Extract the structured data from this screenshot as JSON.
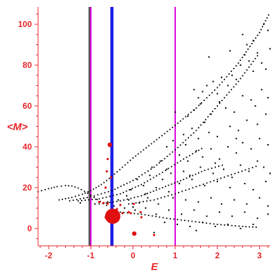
{
  "chart_data": {
    "type": "scatter",
    "title": "",
    "xlabel": "E",
    "ylabel": "<M>",
    "xlim": [
      -2.25,
      3.25
    ],
    "ylim": [
      -8.5,
      108.5
    ],
    "grid": false,
    "legend": "none",
    "x_ticks": [
      -2,
      -1,
      0,
      1,
      2,
      3
    ],
    "x_tick_labels": [
      "-2",
      "-1",
      "0",
      "1",
      "2",
      "3"
    ],
    "y_ticks": [
      0,
      20,
      40,
      60,
      80,
      100
    ],
    "y_tick_labels": [
      "0",
      "20",
      "40",
      "60",
      "80",
      "100"
    ],
    "colors": {
      "axis": "#e8262a",
      "points": "#000000",
      "highlight": "#e01010",
      "dark_line": "#555555",
      "magenta_line": "#dd00dd",
      "blue_line": "#1a1ae6"
    },
    "vertical_lines": [
      {
        "x": -1.03,
        "color": "#555555",
        "role": "dark"
      },
      {
        "x": -1.0,
        "color": "#dd00dd",
        "role": "magenta"
      },
      {
        "x": -0.5,
        "color": "#1a1ae6",
        "role": "blue-thick"
      },
      {
        "x": 1.0,
        "color": "#dd00dd",
        "role": "magenta"
      }
    ],
    "curves": [
      {
        "name": "",
        "points": [
          [
            -2.25,
            18
          ],
          [
            -2.0,
            19.5
          ],
          [
            -1.8,
            20.5
          ],
          [
            -1.6,
            21
          ],
          [
            -1.45,
            20.8
          ],
          [
            -1.3,
            19.8
          ],
          [
            -1.15,
            18.2
          ],
          [
            -1.0,
            16.2
          ],
          [
            -0.85,
            14.2
          ],
          [
            -0.7,
            12.2
          ],
          [
            -0.55,
            10.4
          ]
        ]
      },
      {
        "name": "",
        "points": [
          [
            -1.75,
            14
          ],
          [
            -1.45,
            15.2
          ],
          [
            -1.2,
            16.8
          ],
          [
            -1.0,
            18.5
          ],
          [
            -0.75,
            21.5
          ],
          [
            -0.5,
            25.5
          ],
          [
            -0.25,
            30
          ],
          [
            0.0,
            34.5
          ],
          [
            0.5,
            42.5
          ],
          [
            1.0,
            50.5
          ],
          [
            1.5,
            59
          ],
          [
            2.0,
            69
          ],
          [
            2.5,
            81
          ],
          [
            3.0,
            96
          ],
          [
            3.25,
            106
          ]
        ]
      },
      {
        "name": "",
        "points": [
          [
            -1.5,
            13.5
          ],
          [
            -1.0,
            15.5
          ],
          [
            -0.5,
            18.5
          ],
          [
            0.0,
            23.5
          ],
          [
            0.5,
            30
          ],
          [
            1.0,
            38.5
          ],
          [
            1.5,
            48
          ],
          [
            2.0,
            60
          ],
          [
            2.5,
            72
          ],
          [
            3.0,
            86
          ]
        ]
      },
      {
        "name": "",
        "points": [
          [
            -1.3,
            13.5
          ],
          [
            -0.8,
            14.5
          ],
          [
            -0.3,
            17
          ],
          [
            0.2,
            21.5
          ],
          [
            0.7,
            27.5
          ],
          [
            1.2,
            34
          ],
          [
            1.7,
            40
          ]
        ]
      },
      {
        "name": "",
        "points": [
          [
            -0.8,
            12
          ],
          [
            -0.3,
            13.5
          ],
          [
            0.2,
            16
          ],
          [
            0.7,
            20
          ],
          [
            1.2,
            24
          ],
          [
            1.7,
            28.5
          ],
          [
            2.2,
            31.5
          ]
        ]
      },
      {
        "name": "",
        "points": [
          [
            -0.1,
            12
          ],
          [
            0.5,
            14
          ],
          [
            1.0,
            17
          ],
          [
            1.5,
            20.5
          ],
          [
            2.0,
            24
          ],
          [
            2.5,
            27.5
          ],
          [
            3.0,
            31
          ]
        ]
      },
      {
        "name": "",
        "points": [
          [
            -0.3,
            8
          ],
          [
            0.2,
            7
          ],
          [
            0.8,
            5
          ],
          [
            1.4,
            3.5
          ],
          [
            2.0,
            2
          ],
          [
            2.6,
            1
          ],
          [
            3.0,
            0.5
          ]
        ]
      }
    ],
    "scattered_points": [
      [
        1.45,
        68
      ],
      [
        1.55,
        64
      ],
      [
        1.65,
        67
      ],
      [
        1.75,
        70
      ],
      [
        1.9,
        72
      ],
      [
        2.0,
        66
      ],
      [
        2.1,
        74
      ],
      [
        2.25,
        70
      ],
      [
        2.35,
        75
      ],
      [
        2.45,
        73
      ],
      [
        2.55,
        80
      ],
      [
        2.65,
        85
      ],
      [
        2.75,
        82
      ],
      [
        2.85,
        77
      ],
      [
        2.95,
        86
      ],
      [
        3.05,
        81
      ],
      [
        3.15,
        78
      ],
      [
        3.25,
        88
      ],
      [
        2.7,
        90
      ],
      [
        3.1,
        100
      ],
      [
        1.3,
        55
      ],
      [
        1.45,
        58
      ],
      [
        1.6,
        61
      ],
      [
        1.7,
        52
      ],
      [
        1.85,
        56
      ],
      [
        2.05,
        62
      ],
      [
        2.2,
        59
      ],
      [
        2.4,
        57
      ],
      [
        2.6,
        65
      ],
      [
        2.8,
        63
      ],
      [
        2.9,
        60
      ],
      [
        3.05,
        68
      ],
      [
        3.2,
        64
      ],
      [
        1.2,
        46
      ],
      [
        1.4,
        49
      ],
      [
        1.55,
        44
      ],
      [
        1.8,
        47
      ],
      [
        2.0,
        45
      ],
      [
        2.3,
        50
      ],
      [
        2.5,
        48
      ],
      [
        2.7,
        53
      ],
      [
        2.95,
        51
      ],
      [
        3.15,
        56
      ],
      [
        1.1,
        36
      ],
      [
        1.3,
        33
      ],
      [
        1.5,
        38
      ],
      [
        1.65,
        35
      ],
      [
        1.85,
        39
      ],
      [
        2.05,
        34
      ],
      [
        2.25,
        40
      ],
      [
        2.45,
        37
      ],
      [
        2.6,
        42
      ],
      [
        2.8,
        39
      ],
      [
        3.0,
        44
      ],
      [
        3.2,
        41
      ],
      [
        1.2,
        28
      ],
      [
        1.35,
        26
      ],
      [
        1.6,
        30
      ],
      [
        1.9,
        27
      ],
      [
        2.15,
        29
      ],
      [
        2.35,
        25
      ],
      [
        2.55,
        31
      ],
      [
        2.75,
        28
      ],
      [
        2.95,
        33
      ],
      [
        3.1,
        30
      ],
      [
        3.25,
        27
      ],
      [
        1.1,
        22
      ],
      [
        1.4,
        24
      ],
      [
        1.7,
        21
      ],
      [
        2.0,
        23
      ],
      [
        2.3,
        20
      ],
      [
        2.65,
        22
      ],
      [
        2.85,
        19
      ],
      [
        3.15,
        23
      ],
      [
        0.55,
        20
      ],
      [
        0.7,
        24
      ],
      [
        0.85,
        18
      ],
      [
        0.9,
        27
      ],
      [
        0.35,
        15
      ],
      [
        0.6,
        12
      ],
      [
        0.95,
        15
      ],
      [
        1.25,
        14
      ],
      [
        1.55,
        13
      ],
      [
        1.85,
        15
      ],
      [
        2.1,
        12
      ],
      [
        2.4,
        14
      ],
      [
        2.7,
        12
      ],
      [
        3.0,
        15
      ],
      [
        3.2,
        11
      ],
      [
        0.45,
        30
      ],
      [
        0.65,
        33
      ],
      [
        0.8,
        29
      ],
      [
        0.1,
        24
      ],
      [
        0.25,
        21
      ],
      [
        0.4,
        26
      ],
      [
        -0.05,
        19
      ],
      [
        -0.15,
        16
      ],
      [
        0.05,
        9
      ],
      [
        0.3,
        10
      ],
      [
        0.55,
        7
      ],
      [
        0.85,
        9
      ],
      [
        1.15,
        7
      ],
      [
        1.45,
        9
      ],
      [
        1.75,
        6
      ],
      [
        2.05,
        8
      ],
      [
        2.35,
        6
      ],
      [
        2.65,
        8
      ],
      [
        2.95,
        5
      ],
      [
        3.2,
        7
      ],
      [
        0.75,
        3
      ],
      [
        1.05,
        2
      ],
      [
        1.35,
        1
      ],
      [
        1.65,
        3
      ],
      [
        1.95,
        1
      ],
      [
        2.25,
        2
      ],
      [
        2.55,
        0
      ],
      [
        2.85,
        2
      ],
      [
        1.5,
        -1
      ],
      [
        0.5,
        -2
      ],
      [
        1.8,
        84
      ],
      [
        2.3,
        87
      ],
      [
        2.6,
        95
      ],
      [
        2.85,
        92
      ],
      [
        3.2,
        97
      ],
      [
        2.45,
        44
      ],
      [
        1.95,
        32
      ],
      [
        1.25,
        41
      ],
      [
        0.95,
        43
      ],
      [
        1.0,
        57
      ],
      [
        0.8,
        40
      ],
      [
        -0.35,
        14
      ],
      [
        -0.6,
        13
      ],
      [
        -0.9,
        12
      ],
      [
        -1.25,
        12.5
      ],
      [
        -0.2,
        10
      ],
      [
        -0.45,
        11
      ],
      [
        0.0,
        10.5
      ],
      [
        0.15,
        12.5
      ],
      [
        -0.1,
        14
      ],
      [
        0.3,
        17
      ]
    ],
    "highlight_points": [
      {
        "x": -0.48,
        "y": 6.0,
        "size": "large"
      },
      {
        "x": -0.62,
        "y": 5.5,
        "size": "medium"
      },
      {
        "x": -0.7,
        "y": 12.5,
        "size": "small"
      },
      {
        "x": -0.6,
        "y": 12.2,
        "size": "small"
      },
      {
        "x": -0.55,
        "y": 41,
        "size": "medium"
      },
      {
        "x": -0.6,
        "y": 34,
        "size": "small"
      },
      {
        "x": -0.62,
        "y": 28,
        "size": "small"
      },
      {
        "x": -0.65,
        "y": 20,
        "size": "small"
      },
      {
        "x": -0.52,
        "y": 25,
        "size": "small"
      },
      {
        "x": -0.3,
        "y": 11.5,
        "size": "small"
      },
      {
        "x": -0.25,
        "y": 7.5,
        "size": "small"
      },
      {
        "x": 0.02,
        "y": 12,
        "size": "small"
      },
      {
        "x": -0.1,
        "y": 8,
        "size": "small"
      },
      {
        "x": -0.05,
        "y": 7.5,
        "size": "small"
      },
      {
        "x": 0.18,
        "y": 8,
        "size": "small"
      },
      {
        "x": 0.2,
        "y": 5.5,
        "size": "small"
      },
      {
        "x": 0.03,
        "y": -2.5,
        "size": "medium"
      },
      {
        "x": 0.5,
        "y": -3.2,
        "size": "small"
      },
      {
        "x": -0.8,
        "y": 13,
        "size": "small"
      },
      {
        "x": -0.42,
        "y": 3.5,
        "size": "small"
      },
      {
        "x": -0.38,
        "y": 9.5,
        "size": "small"
      }
    ]
  }
}
